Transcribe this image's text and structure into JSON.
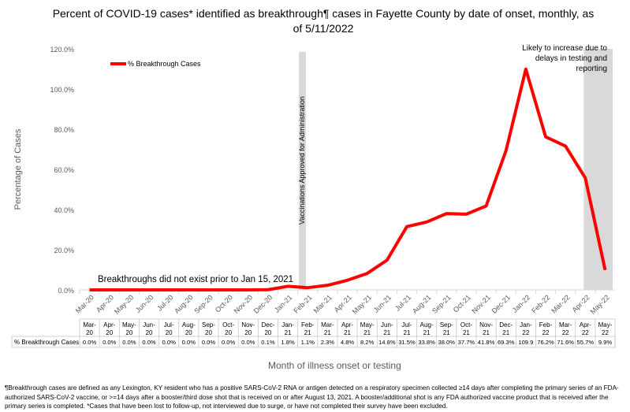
{
  "chart_data": {
    "type": "line",
    "title": "Percent of COVID-19 cases* identified as breakthrough¶ cases in Fayette County by date of onset, monthly, as of 5/11/2022",
    "xlabel": "Month of illness onset or testing",
    "ylabel": "Percentage of Cases",
    "ylim": [
      0,
      120
    ],
    "yticks": [
      "0.0%",
      "20.0%",
      "40.0%",
      "60.0%",
      "80.0%",
      "100.0%",
      "120.0%"
    ],
    "categories": [
      "Mar-20",
      "Apr-20",
      "May-20",
      "Jun-20",
      "Jul-20",
      "Aug-20",
      "Sep-20",
      "Oct-20",
      "Nov-20",
      "Dec-20",
      "Jan-21",
      "Feb-21",
      "Mar-21",
      "Apr-21",
      "May-21",
      "Jun-21",
      "Jul-21",
      "Aug-21",
      "Sep-21",
      "Oct-21",
      "Nov-21",
      "Dec-21",
      "Jan-22",
      "Feb-22",
      "Mar-22",
      "Apr-22",
      "May-22"
    ],
    "series": [
      {
        "name": "% Breakthrough Cases",
        "color": "#FF0000",
        "values": [
          0,
          0,
          0,
          0,
          0,
          0,
          0,
          0,
          0,
          0.1,
          1.8,
          1.1,
          2.3,
          4.8,
          8.2,
          14.8,
          31.5,
          33.8,
          38.0,
          37.7,
          41.8,
          69.3,
          109.9,
          76.2,
          71.6,
          55.7,
          9.9
        ]
      }
    ],
    "table_values": [
      "0.0%",
      "0.0%",
      "0.0%",
      "0.0%",
      "0.0%",
      "0.0%",
      "0.0%",
      "0.0%",
      "0.0%",
      "0.1%",
      "1.8%",
      "1.1%",
      "2.3%",
      "4.8%",
      "8.2%",
      "14.8%",
      "31.5%",
      "33.8%",
      "38.0%",
      "37.7%",
      "41.8%",
      "69.3%",
      "109.9",
      "76.2%",
      "71.6%",
      "55.7%",
      "9.9%"
    ],
    "legend": "top-left",
    "annotations": {
      "vaccination": "Vaccinations Approved for Administration",
      "no_breakthrough": "Breakthroughs did not exist prior to Jan 15, 2021",
      "likely_increase": [
        "Likely to increase due to",
        "delays in testing and",
        "reporting"
      ]
    },
    "band_color": "#D9D9D9"
  },
  "footnote": "¶Breakthrough cases are defined as any Lexington, KY resident who has a positive SARS-CoV-2 RNA or antigen detected on a respiratory specimen collected ≥14 days after completing the primary series of an FDA-authorized SARS-CoV-2 vaccine, or >=14 days after a booster/third dose shot that is received on or after August 13, 2021.  A booster/additional shot is any FDA authorized vaccine product that is received after the primary series is completed. *Cases that have been lost to follow-up, not interviewed due to surge, or have not completed their survey have been excluded."
}
